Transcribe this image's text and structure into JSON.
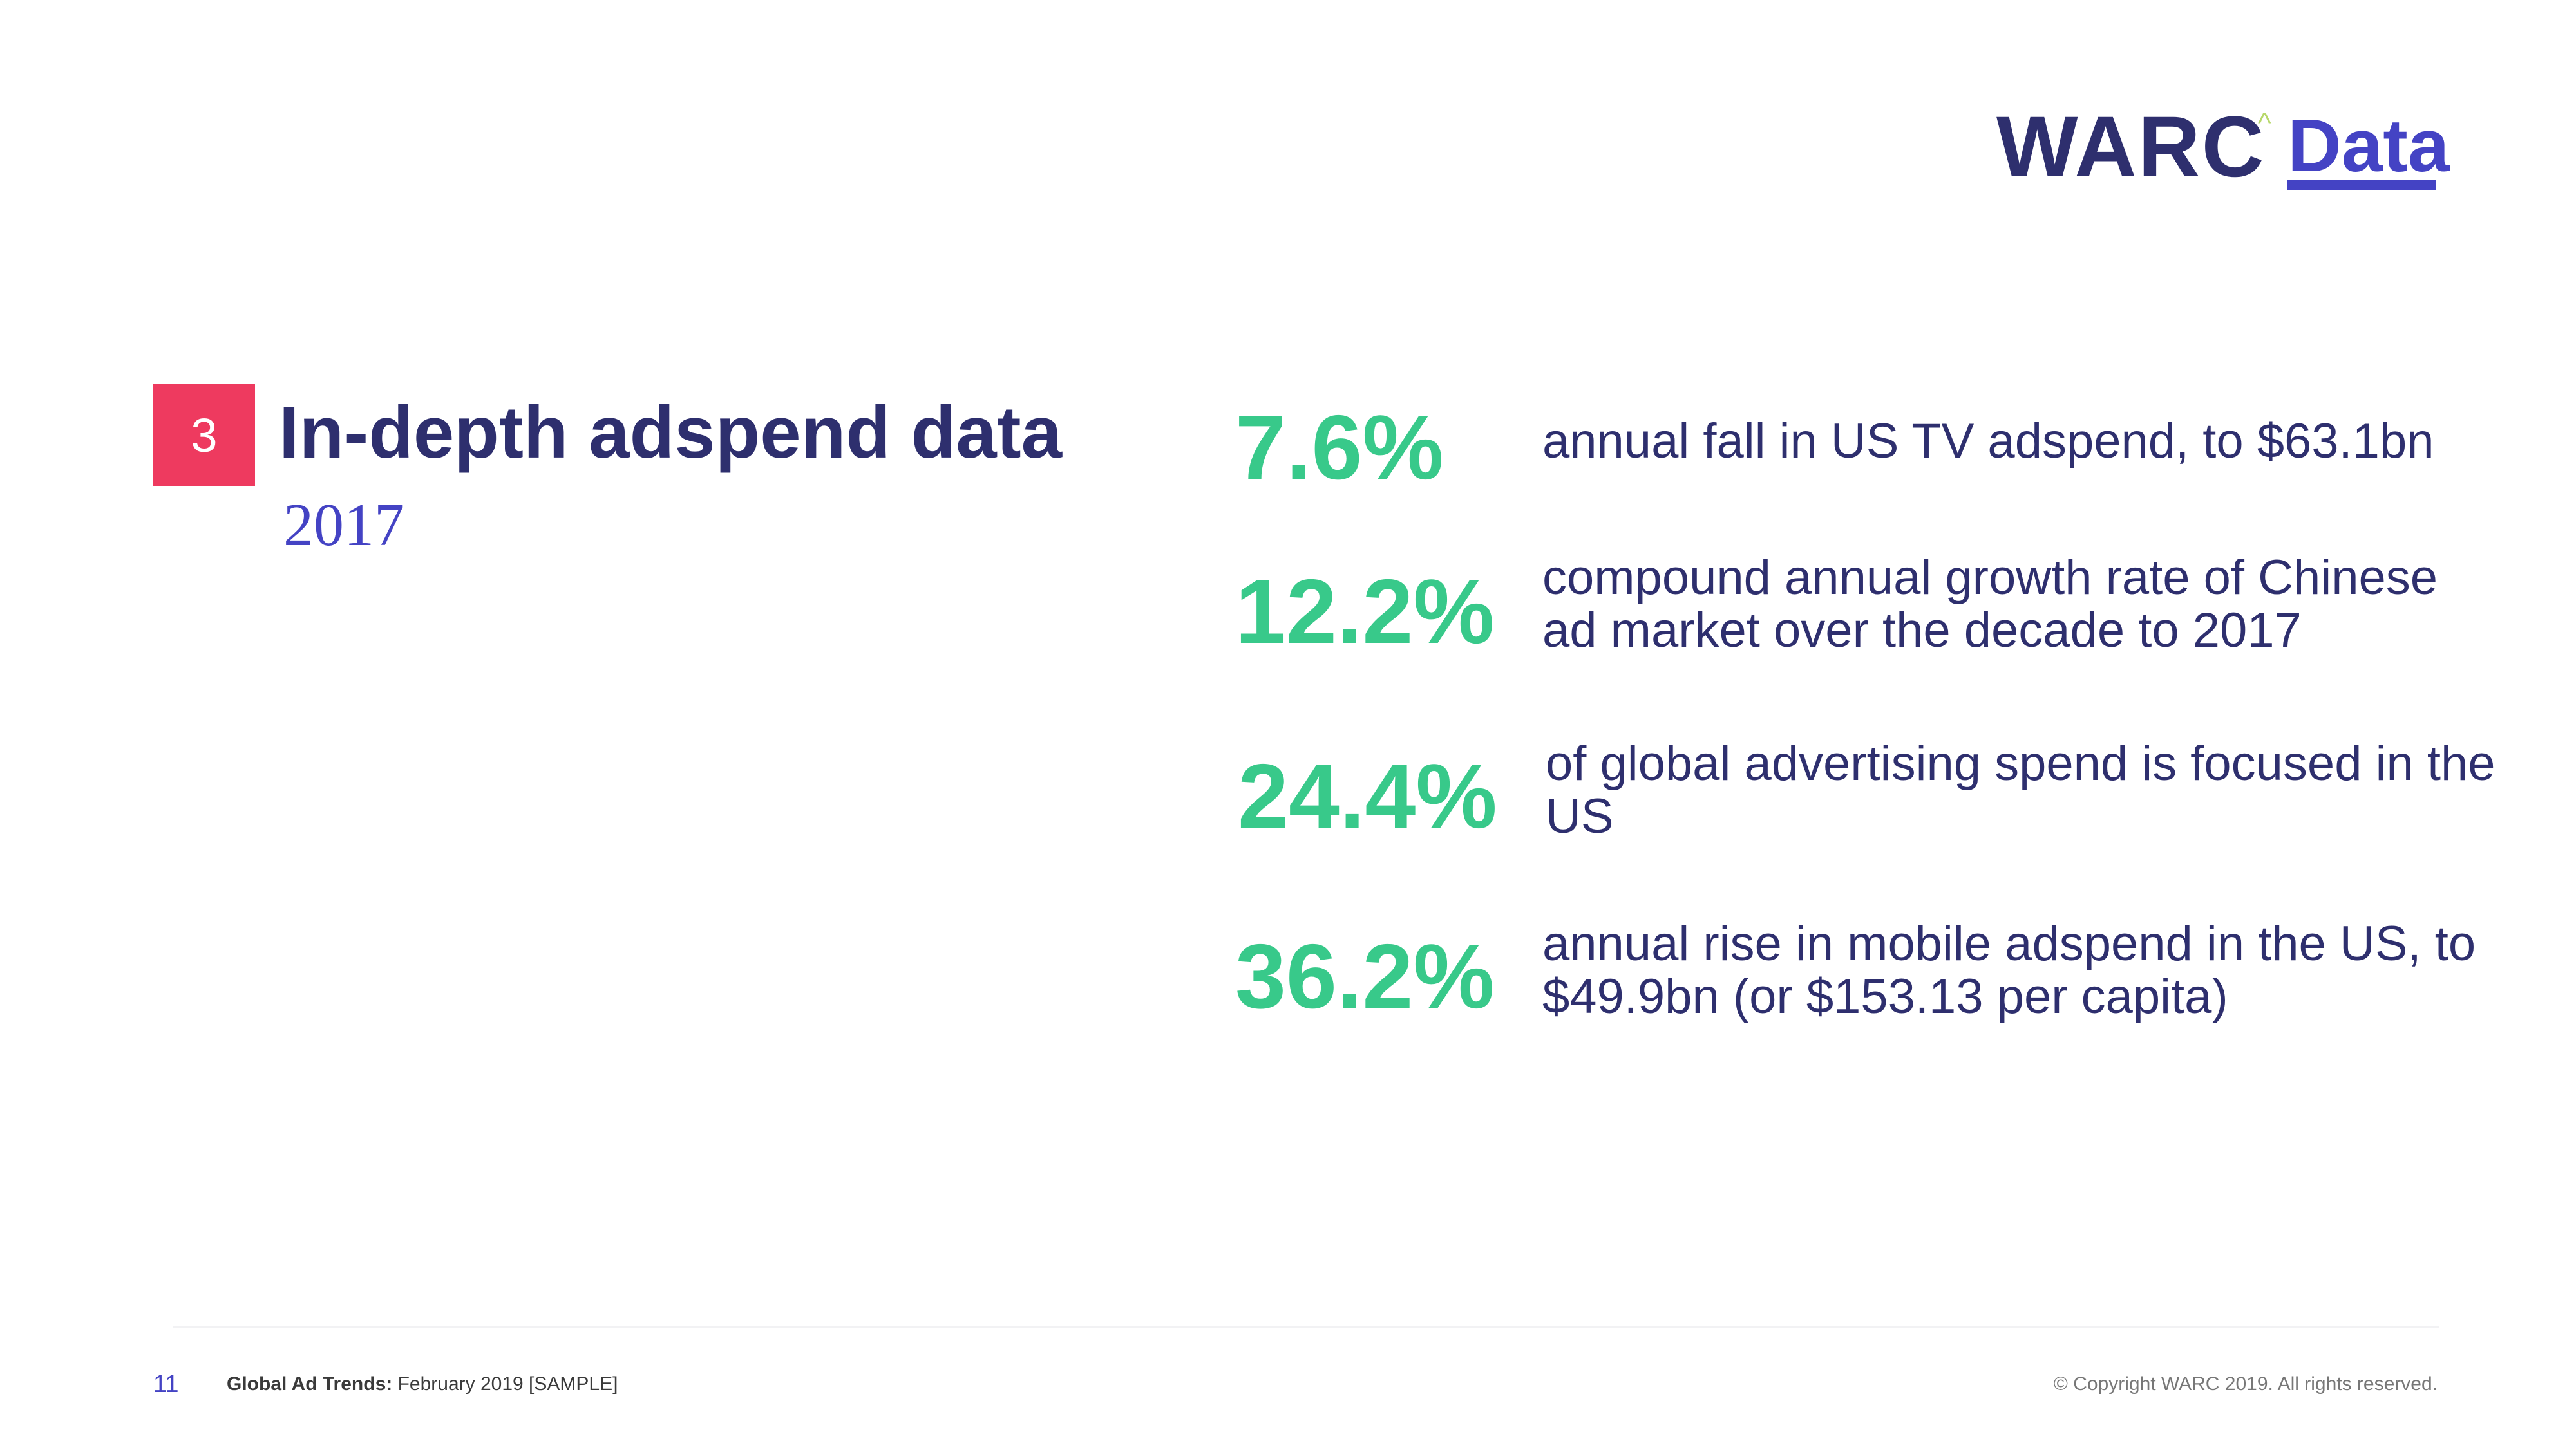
{
  "logo": {
    "brand": "WARC",
    "caret": "^",
    "product": "Data"
  },
  "section": {
    "number": "3",
    "title": "In-depth adspend data",
    "year": "2017"
  },
  "stats": [
    {
      "value": "7.6%",
      "description": "annual fall in US TV adspend, to $63.1bn"
    },
    {
      "value": "12.2%",
      "description": "compound annual growth rate of Chinese ad market over the decade to 2017"
    },
    {
      "value": "24.4%",
      "description": "of global advertising spend is focused in the US"
    },
    {
      "value": "36.2%",
      "description": "annual rise in mobile adspend in the US, to $49.9bn (or $153.13 per capita)"
    }
  ],
  "footer": {
    "page_number": "11",
    "doc_title": "Global Ad Trends:",
    "doc_subtitle": " February 2019 [SAMPLE]",
    "copyright": "© Copyright WARC 2019. All rights reserved."
  },
  "colors": {
    "navy": "#2e2f6e",
    "accent_blue": "#4443c4",
    "green": "#38c98a",
    "badge_red": "#ee3a5f"
  }
}
